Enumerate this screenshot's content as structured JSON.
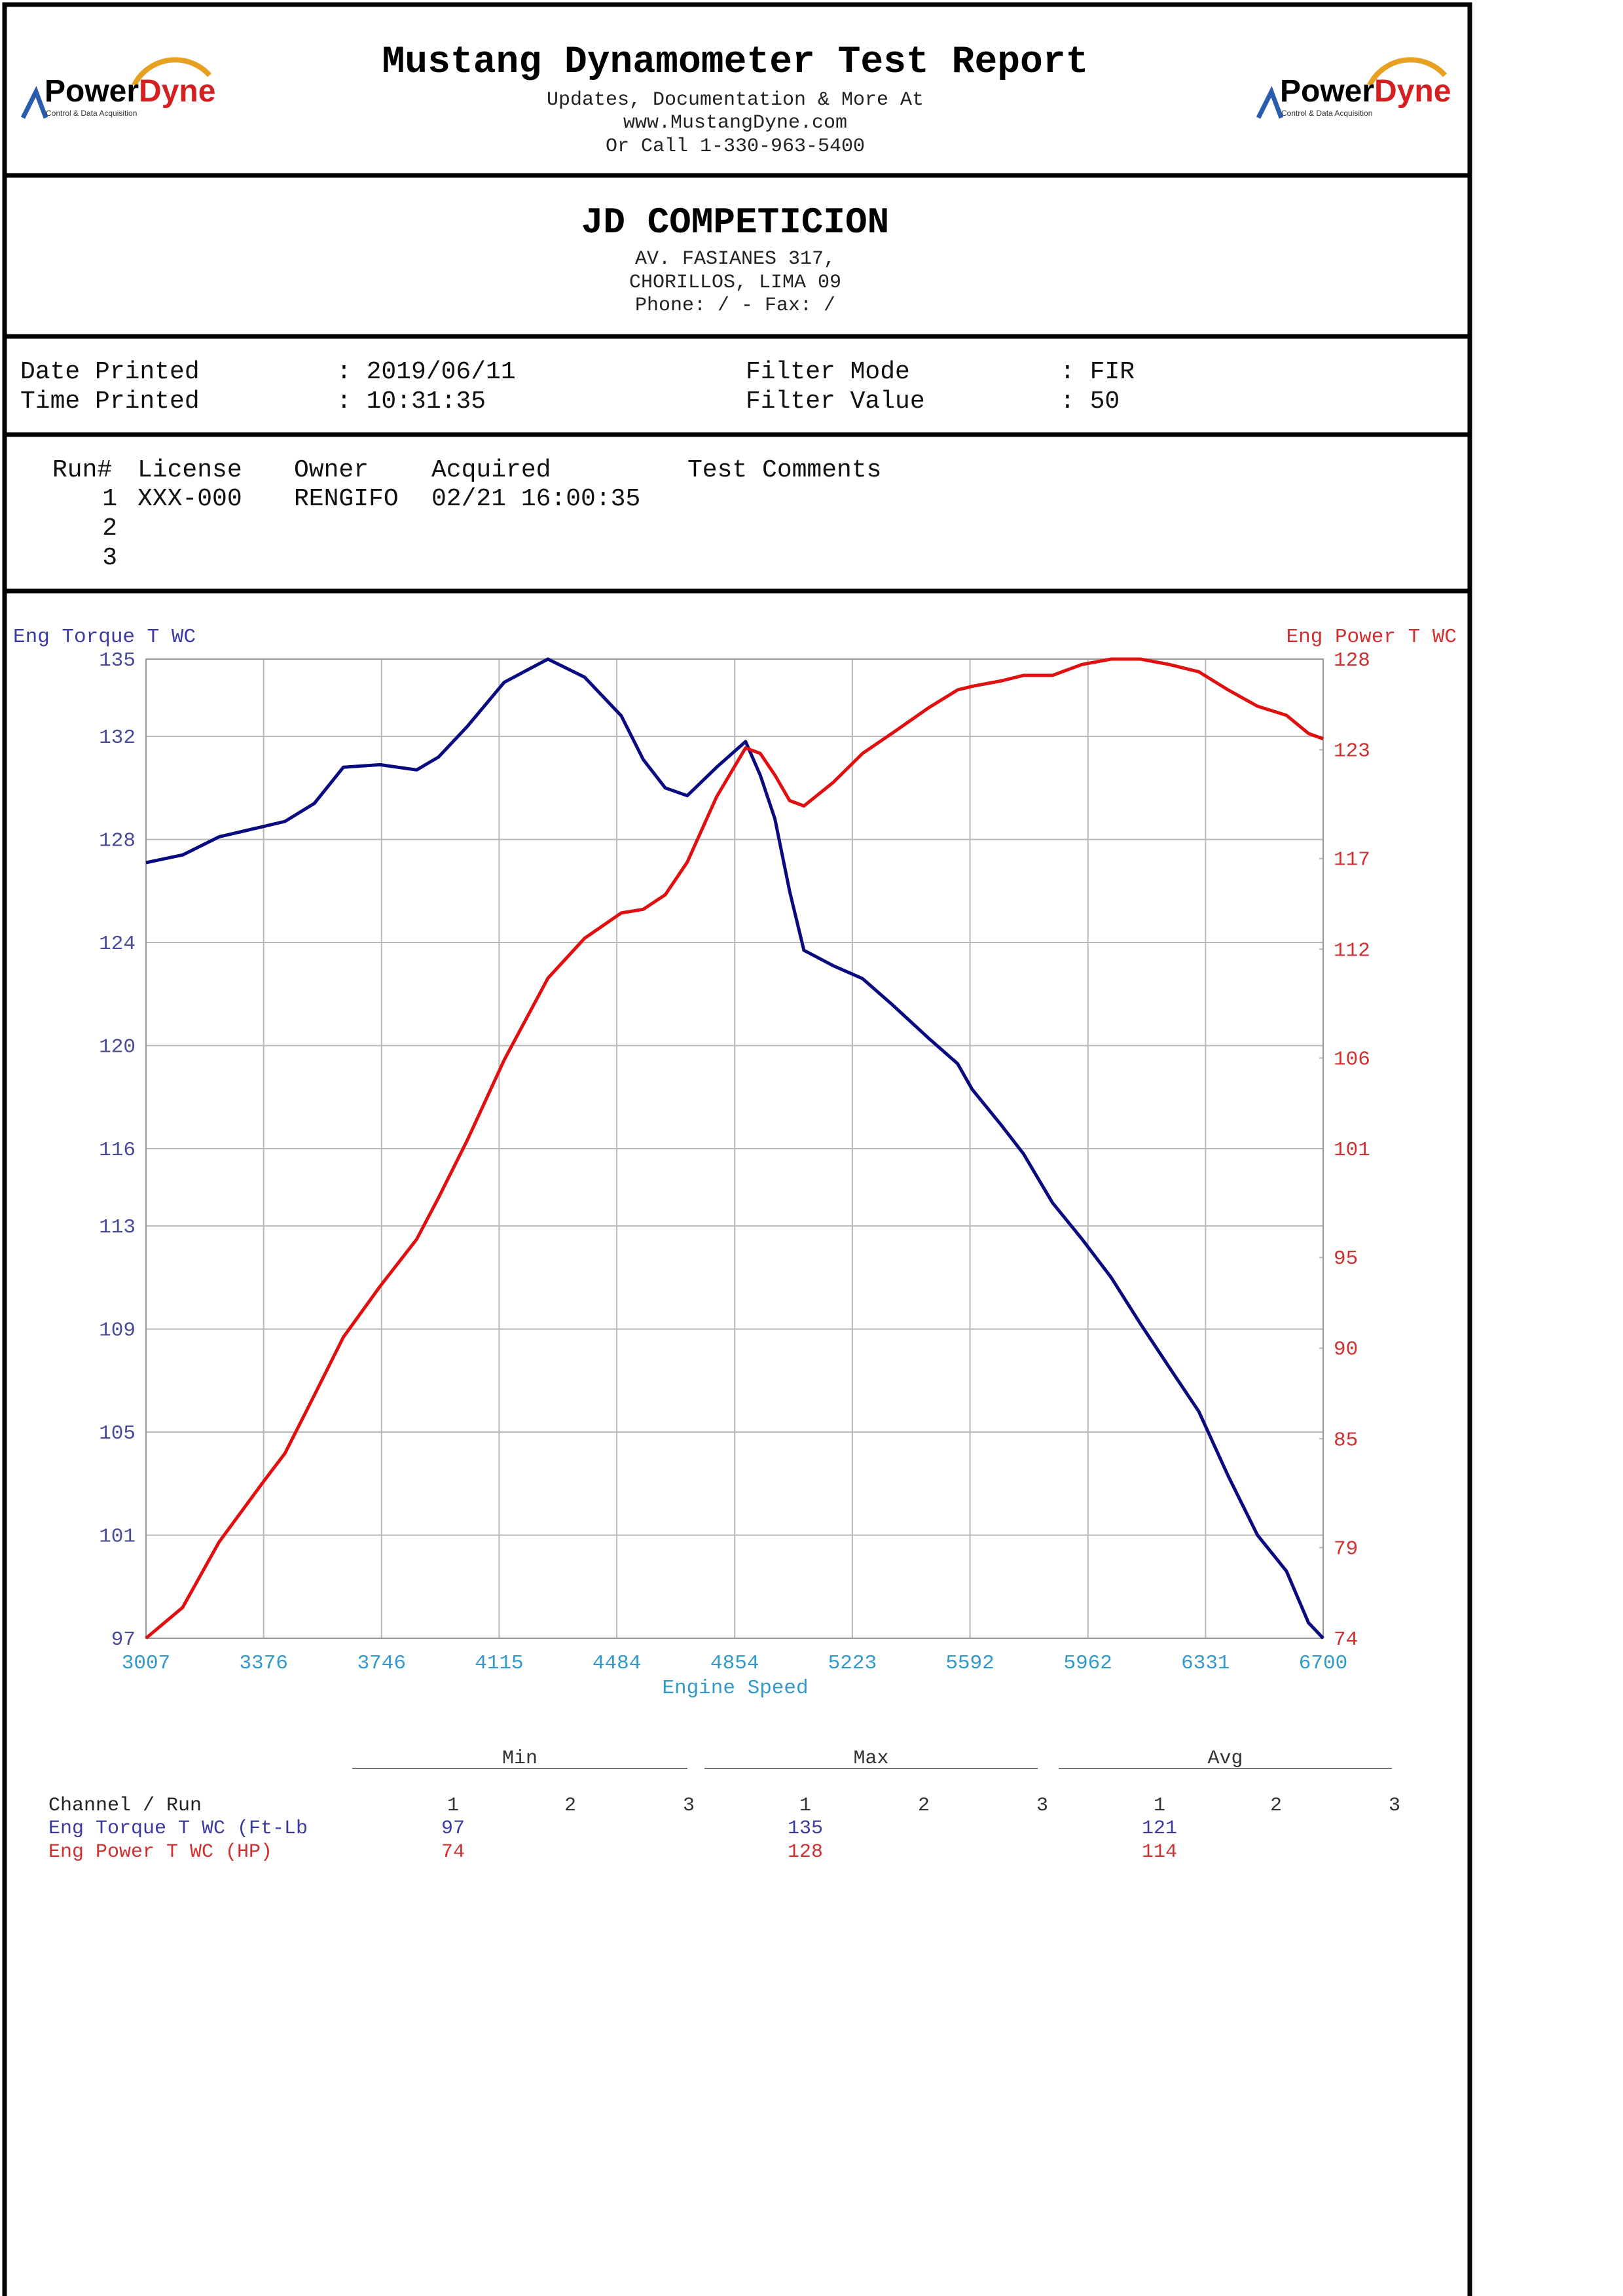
{
  "header": {
    "title": "Mustang Dynamometer Test Report",
    "lines": [
      "Updates, Documentation & More At",
      "www.MustangDyne.com",
      "Or Call 1-330-963-5400"
    ],
    "logo": {
      "power": "Power",
      "dyne": "Dyne",
      "tagline": "Control & Data Acquisition"
    }
  },
  "shop": {
    "name": "JD COMPETICION",
    "lines": [
      "AV. FASIANES 317,",
      "CHORILLOS, LIMA  09",
      "Phone:  /  - Fax:  /"
    ]
  },
  "info": {
    "rows": [
      [
        "Date Printed",
        ": 2019/06/11",
        "Filter Mode",
        ": FIR"
      ],
      [
        "Time Printed",
        ": 10:31:35",
        "Filter Value",
        ": 50"
      ]
    ]
  },
  "runs": {
    "headers": [
      "Run#",
      "License",
      "Owner",
      "Acquired",
      "Test Comments"
    ],
    "rows": [
      [
        "1",
        "XXX-000",
        "RENGIFO",
        "02/21 16:00:35"
      ],
      [
        "2"
      ],
      [
        "3"
      ]
    ]
  },
  "chart_data": {
    "type": "line",
    "ylabel": "Eng Torque T WC",
    "y2label": "Eng Power T WC",
    "xlabel": "Engine Speed",
    "grid": true,
    "xlim": [
      3007,
      6700
    ],
    "xticks": [
      3007,
      3376,
      3746,
      4115,
      4484,
      4854,
      5223,
      5592,
      5962,
      6331,
      6700
    ],
    "ylim": [
      97,
      135
    ],
    "yticks": [
      97,
      101,
      105,
      109,
      113,
      116,
      120,
      124,
      128,
      132,
      135
    ],
    "y2lim": [
      74,
      128
    ],
    "y2ticks": [
      74,
      79,
      85,
      90,
      95,
      101,
      106,
      112,
      117,
      123,
      128
    ],
    "x": [
      3007,
      3122,
      3236,
      3374,
      3443,
      3535,
      3626,
      3741,
      3856,
      3925,
      4016,
      4131,
      4268,
      4383,
      4498,
      4567,
      4636,
      4705,
      4797,
      4888,
      4934,
      4980,
      5026,
      5071,
      5163,
      5255,
      5347,
      5461,
      5553,
      5599,
      5691,
      5760,
      5851,
      5943,
      6035,
      6127,
      6218,
      6310,
      6402,
      6494,
      6585,
      6654,
      6700
    ],
    "series": [
      {
        "name": "Eng Torque T WC",
        "color": "#0a0a80",
        "values": [
          127.1,
          127.4,
          128.1,
          128.5,
          128.7,
          129.4,
          130.8,
          130.9,
          130.7,
          131.2,
          132.4,
          134.1,
          135,
          134.3,
          132.8,
          131.1,
          130,
          129.7,
          130.8,
          131.8,
          130.5,
          128.8,
          126,
          123.7,
          123.1,
          122.6,
          121.6,
          120.3,
          119.3,
          118.3,
          116.9,
          115.8,
          113.9,
          112.5,
          111,
          109.2,
          107.5,
          105.8,
          103.3,
          101,
          99.6,
          97.6,
          97
        ]
      },
      {
        "name": "Eng Power T WC",
        "color": "#e01010",
        "axis": "y2",
        "values": [
          74,
          75.7,
          79.3,
          82.6,
          84.2,
          87.4,
          90.6,
          93.4,
          96,
          98.3,
          101.5,
          105.9,
          110.4,
          112.6,
          114,
          114.2,
          115,
          116.8,
          120.4,
          123.1,
          122.8,
          121.6,
          120.2,
          119.9,
          121.2,
          122.8,
          123.9,
          125.3,
          126.3,
          126.5,
          126.8,
          127.1,
          127.1,
          127.7,
          128,
          128,
          127.7,
          127.3,
          126.3,
          125.4,
          124.9,
          123.9,
          123.6
        ]
      }
    ]
  },
  "stats": {
    "groups": [
      "Min",
      "Max",
      "Avg"
    ],
    "runs": [
      "1",
      "2",
      "3"
    ],
    "channel_header": "Channel / Run",
    "rows": [
      {
        "channel": "Eng Torque T WC (Ft-Lb",
        "values": [
          97,
          135,
          121
        ]
      },
      {
        "channel": "Eng Power T WC (HP)",
        "values": [
          74,
          128,
          114
        ]
      }
    ]
  }
}
